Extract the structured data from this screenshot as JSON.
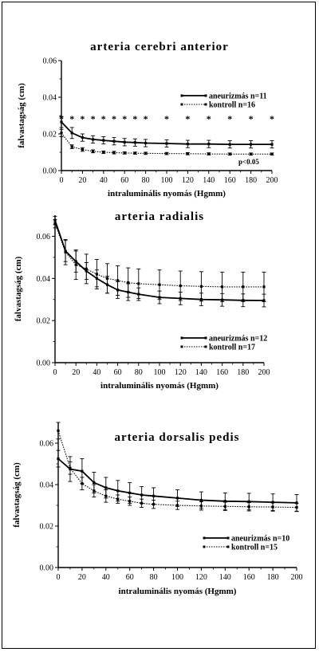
{
  "chart_data": [
    {
      "type": "line",
      "title": "arteria cerebri anterior",
      "xlabel": "intraluminális nyomás (Hgmm)",
      "ylabel": "falvastagság (cm)",
      "xlim": [
        0,
        200
      ],
      "ylim": [
        0,
        0.06
      ],
      "x": [
        0,
        10,
        20,
        30,
        40,
        50,
        60,
        70,
        80,
        100,
        120,
        140,
        160,
        180,
        200
      ],
      "x_ticks": [
        "0",
        "20",
        "40",
        "60",
        "80",
        "100",
        "120",
        "140",
        "160",
        "180",
        "200"
      ],
      "y_ticks": [
        "0.00",
        "0.02",
        "0.04",
        "0.06"
      ],
      "series": [
        {
          "name": "aneurizmás n=11",
          "style": "solid",
          "values": [
            0.0265,
            0.0205,
            0.018,
            0.017,
            0.0165,
            0.016,
            0.0155,
            0.0153,
            0.015,
            0.0148,
            0.0145,
            0.0145,
            0.0143,
            0.0143,
            0.0143
          ],
          "errors": [
            0.003,
            0.003,
            0.002,
            0.002,
            0.002,
            0.002,
            0.002,
            0.002,
            0.002,
            0.002,
            0.002,
            0.002,
            0.002,
            0.002,
            0.002
          ]
        },
        {
          "name": "kontroll n=16",
          "style": "dotted",
          "values": [
            0.0205,
            0.013,
            0.0115,
            0.0105,
            0.01,
            0.0098,
            0.0096,
            0.0095,
            0.0094,
            0.0093,
            0.0092,
            0.0091,
            0.009,
            0.009,
            0.009
          ],
          "errors": [
            0.002,
            0.001,
            0.001,
            0.0008,
            0.0007,
            0.0007,
            0.0006,
            0.0006,
            0.0006,
            0.0006,
            0.0006,
            0.0006,
            0.0006,
            0.0006,
            0.0006
          ]
        }
      ],
      "significance_marker": "*",
      "significance_x": [
        0,
        10,
        20,
        30,
        40,
        50,
        60,
        70,
        80,
        100,
        120,
        140,
        160,
        180,
        200
      ],
      "pvalue_text": "p<0.05"
    },
    {
      "type": "line",
      "title": "arteria radialis",
      "xlabel": "intraluminális nyomás (Hgmm)",
      "ylabel": "falvastagság (cm)",
      "xlim": [
        0,
        200
      ],
      "ylim": [
        0,
        0.07
      ],
      "x": [
        0,
        10,
        20,
        30,
        40,
        50,
        60,
        70,
        80,
        100,
        120,
        140,
        160,
        180,
        200
      ],
      "x_ticks": [
        "0",
        "20",
        "40",
        "60",
        "80",
        "100",
        "120",
        "140",
        "160",
        "180",
        "200"
      ],
      "y_ticks": [
        "0.00",
        "0.02",
        "0.04",
        "0.06"
      ],
      "series": [
        {
          "name": "aneurizmás n=12",
          "style": "solid",
          "values": [
            0.0675,
            0.053,
            0.048,
            0.0435,
            0.04,
            0.037,
            0.0345,
            0.0335,
            0.0325,
            0.031,
            0.0305,
            0.03,
            0.0298,
            0.0296,
            0.0295
          ],
          "errors": [
            0.002,
            0.005,
            0.005,
            0.004,
            0.004,
            0.004,
            0.004,
            0.004,
            0.003,
            0.003,
            0.003,
            0.003,
            0.003,
            0.003,
            0.003
          ]
        },
        {
          "name": "kontroll n=17",
          "style": "dotted",
          "values": [
            0.066,
            0.0525,
            0.0465,
            0.0445,
            0.042,
            0.04,
            0.039,
            0.038,
            0.0375,
            0.037,
            0.0365,
            0.0362,
            0.036,
            0.036,
            0.036
          ],
          "errors": [
            0.002,
            0.006,
            0.007,
            0.007,
            0.007,
            0.007,
            0.007,
            0.007,
            0.007,
            0.007,
            0.007,
            0.007,
            0.007,
            0.007,
            0.007
          ]
        }
      ]
    },
    {
      "type": "line",
      "title": "arteria dorsalis pedis",
      "xlabel": "intraluminális nyomás (Hgmm)",
      "ylabel": "falvastagság (cm)",
      "xlim": [
        0,
        200
      ],
      "ylim": [
        0,
        0.07
      ],
      "x": [
        0,
        10,
        20,
        30,
        40,
        50,
        60,
        70,
        80,
        100,
        120,
        140,
        160,
        180,
        200
      ],
      "x_ticks": [
        "0",
        "20",
        "40",
        "60",
        "80",
        "100",
        "120",
        "140",
        "160",
        "180",
        "200"
      ],
      "y_ticks": [
        "0.00",
        "0.02",
        "0.04",
        "0.06"
      ],
      "series": [
        {
          "name": "aneurizmás n=10",
          "style": "solid",
          "values": [
            0.0525,
            0.0475,
            0.0465,
            0.041,
            0.0385,
            0.037,
            0.036,
            0.035,
            0.0345,
            0.0335,
            0.0325,
            0.032,
            0.0318,
            0.0315,
            0.0312
          ],
          "errors": [
            0.004,
            0.006,
            0.006,
            0.005,
            0.005,
            0.005,
            0.005,
            0.004,
            0.004,
            0.004,
            0.004,
            0.004,
            0.004,
            0.004,
            0.004
          ]
        },
        {
          "name": "kontroll n=15",
          "style": "dotted",
          "values": [
            0.066,
            0.048,
            0.0405,
            0.037,
            0.0345,
            0.033,
            0.032,
            0.031,
            0.0305,
            0.03,
            0.0297,
            0.0295,
            0.0293,
            0.0292,
            0.029
          ],
          "errors": [
            0.004,
            0.003,
            0.003,
            0.003,
            0.003,
            0.002,
            0.002,
            0.002,
            0.002,
            0.002,
            0.002,
            0.002,
            0.002,
            0.002,
            0.002
          ]
        }
      ]
    }
  ]
}
